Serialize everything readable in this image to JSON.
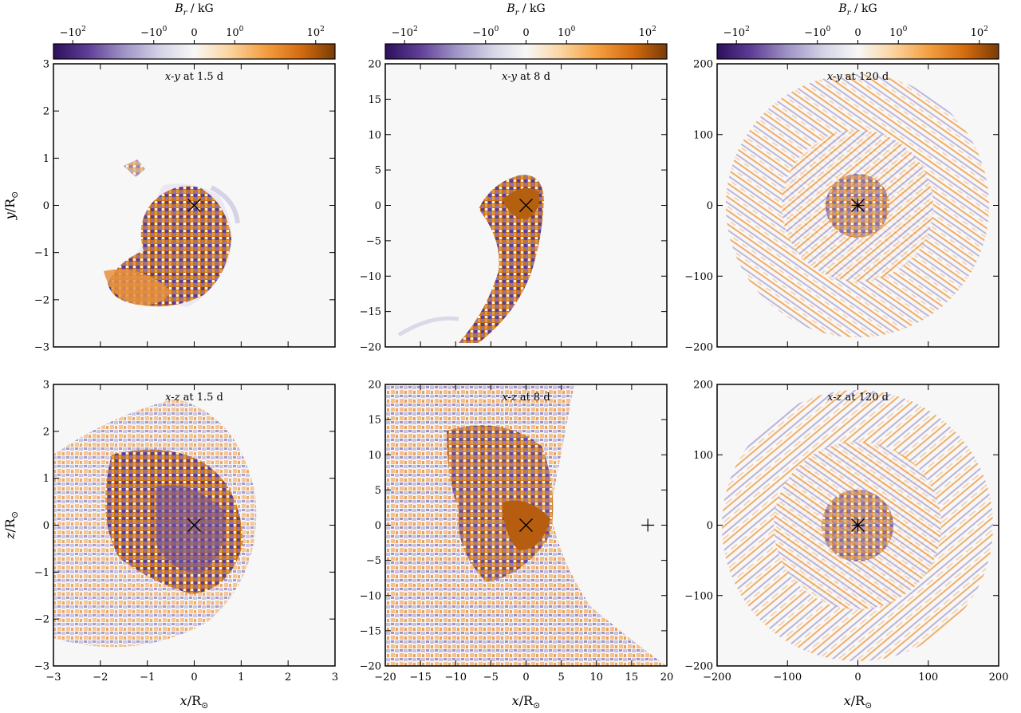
{
  "figure": {
    "colorbar_label_main": "B",
    "colorbar_label_sub": "r",
    "colorbar_label_unit": " / kG",
    "colorbar_ticks": [
      {
        "value": -100,
        "base": "−10",
        "exp": "2"
      },
      {
        "value": -1,
        "base": "−10",
        "exp": "0"
      },
      {
        "value": 0,
        "base": "0",
        "exp": ""
      },
      {
        "value": 1,
        "base": "10",
        "exp": "0"
      },
      {
        "value": 100,
        "base": "10",
        "exp": "2"
      }
    ],
    "colormap": {
      "negative": "#3f1a73",
      "mid": "#f7f7f7",
      "positive": "#8a4408"
    },
    "row_ylabels": [
      {
        "var": "y",
        "unit": "/R",
        "sub": "⊙"
      },
      {
        "var": "z",
        "unit": "/R",
        "sub": "⊙"
      }
    ],
    "xlabel": {
      "var": "x",
      "unit": "/R",
      "sub": "⊙"
    }
  },
  "chart_data": [
    {
      "type": "heatmap",
      "row": 0,
      "col": 0,
      "plane": "x-y",
      "time": "1.5 d",
      "title_italic": "x-y",
      "title_rest": " at 1.5 d",
      "xlim": [
        -3,
        3
      ],
      "ylim": [
        -3,
        3
      ],
      "xticks": [
        -3,
        -2,
        -1,
        0,
        1,
        2,
        3
      ],
      "yticks": [
        -3,
        -2,
        -1,
        0,
        1,
        2,
        3
      ],
      "markers": [
        {
          "type": "x",
          "x": 0,
          "y": 0
        }
      ]
    },
    {
      "type": "heatmap",
      "row": 0,
      "col": 1,
      "plane": "x-y",
      "time": "8 d",
      "title_italic": "x-y",
      "title_rest": " at 8 d",
      "xlim": [
        -20,
        20
      ],
      "ylim": [
        -20,
        20
      ],
      "xticks": [
        -20,
        -15,
        -10,
        -5,
        0,
        5,
        10,
        15,
        20
      ],
      "yticks": [
        -20,
        -15,
        -10,
        -5,
        0,
        5,
        10,
        15,
        20
      ],
      "markers": [
        {
          "type": "x",
          "x": 0,
          "y": 0
        }
      ]
    },
    {
      "type": "heatmap",
      "row": 0,
      "col": 2,
      "plane": "x-y",
      "time": "120 d",
      "title_italic": "x-y",
      "title_rest": " at 120 d",
      "xlim": [
        -200,
        200
      ],
      "ylim": [
        -200,
        200
      ],
      "xticks": [
        -200,
        -100,
        0,
        100,
        200
      ],
      "yticks": [
        -200,
        -100,
        0,
        100,
        200
      ],
      "markers": [
        {
          "type": "x",
          "x": 0,
          "y": 0
        },
        {
          "type": "plus",
          "x": 0,
          "y": 0
        }
      ]
    },
    {
      "type": "heatmap",
      "row": 1,
      "col": 0,
      "plane": "x-z",
      "time": "1.5 d",
      "title_italic": "x-z",
      "title_rest": " at 1.5 d",
      "xlim": [
        -3,
        3
      ],
      "ylim": [
        -3,
        3
      ],
      "xticks": [
        -3,
        -2,
        -1,
        0,
        1,
        2,
        3
      ],
      "yticks": [
        -3,
        -2,
        -1,
        0,
        1,
        2,
        3
      ],
      "markers": [
        {
          "type": "x",
          "x": 0,
          "y": 0
        }
      ]
    },
    {
      "type": "heatmap",
      "row": 1,
      "col": 1,
      "plane": "x-z",
      "time": "8 d",
      "title_italic": "x-z",
      "title_rest": " at 8 d",
      "xlim": [
        -20,
        20
      ],
      "ylim": [
        -20,
        20
      ],
      "xticks": [
        -20,
        -15,
        -10,
        -5,
        0,
        5,
        10,
        15,
        20
      ],
      "yticks": [
        -20,
        -15,
        -10,
        -5,
        0,
        5,
        10,
        15,
        20
      ],
      "markers": [
        {
          "type": "x",
          "x": 0,
          "y": 0
        },
        {
          "type": "plus",
          "x": 17.3,
          "y": 0
        }
      ]
    },
    {
      "type": "heatmap",
      "row": 1,
      "col": 2,
      "plane": "x-z",
      "time": "120 d",
      "title_italic": "x-z",
      "title_rest": " at 120 d",
      "xlim": [
        -200,
        200
      ],
      "ylim": [
        -200,
        200
      ],
      "xticks": [
        -200,
        -100,
        0,
        100,
        200
      ],
      "yticks": [
        -200,
        -100,
        0,
        100,
        200
      ],
      "markers": [
        {
          "type": "x",
          "x": 0,
          "y": 0
        },
        {
          "type": "plus",
          "x": 0,
          "y": 0
        }
      ]
    }
  ]
}
